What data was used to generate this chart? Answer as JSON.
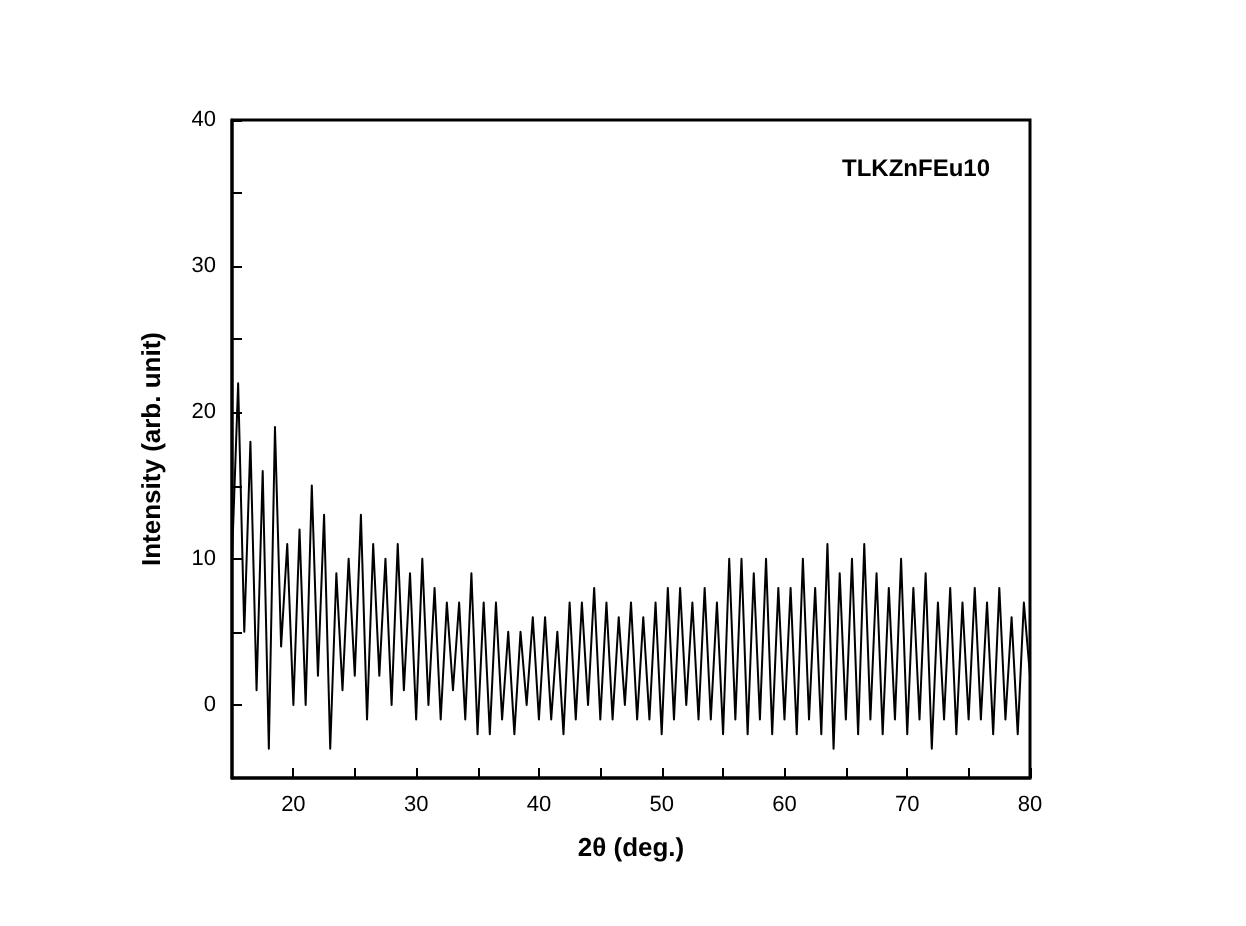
{
  "chart_data": {
    "type": "line",
    "xlabel": "2θ (deg.)",
    "ylabel": "Intensity (arb. unit)",
    "annotations": [
      "TLKZnFEu10"
    ],
    "xlim": [
      15,
      80
    ],
    "ylim": [
      -5,
      40
    ],
    "xticks": [
      20,
      {
        "value": 25,
        "label": null
      },
      30,
      {
        "value": 35,
        "label": null
      },
      40,
      {
        "value": 45,
        "label": null
      },
      50,
      {
        "value": 55,
        "label": null
      },
      60,
      {
        "value": 65,
        "label": null
      },
      70,
      {
        "value": 75,
        "label": null
      },
      80
    ],
    "yticks": [
      0,
      {
        "value": 5,
        "label": null
      },
      10,
      {
        "value": 15,
        "label": null
      },
      20,
      {
        "value": 25,
        "label": null
      },
      30,
      {
        "value": 35,
        "label": null
      },
      40
    ],
    "marker": "none",
    "line_style": "solid",
    "x": [
      15,
      15.5,
      16,
      16.5,
      17,
      17.5,
      18,
      18.5,
      19,
      19.5,
      20,
      20.5,
      21,
      21.5,
      22,
      22.5,
      23,
      23.5,
      24,
      24.5,
      25,
      25.5,
      26,
      26.5,
      27,
      27.5,
      28,
      28.5,
      29,
      29.5,
      30,
      30.5,
      31,
      31.5,
      32,
      32.5,
      33,
      33.5,
      34,
      34.5,
      35,
      35.5,
      36,
      36.5,
      37,
      37.5,
      38,
      38.5,
      39,
      39.5,
      40,
      40.5,
      41,
      41.5,
      42,
      42.5,
      43,
      43.5,
      44,
      44.5,
      45,
      45.5,
      46,
      46.5,
      47,
      47.5,
      48,
      48.5,
      49,
      49.5,
      50,
      50.5,
      51,
      51.5,
      52,
      52.5,
      53,
      53.5,
      54,
      54.5,
      55,
      55.5,
      56,
      56.5,
      57,
      57.5,
      58,
      58.5,
      59,
      59.5,
      60,
      60.5,
      61,
      61.5,
      62,
      62.5,
      63,
      63.5,
      64,
      64.5,
      65,
      65.5,
      66,
      66.5,
      67,
      67.5,
      68,
      68.5,
      69,
      69.5,
      70,
      70.5,
      71,
      71.5,
      72,
      72.5,
      73,
      73.5,
      74,
      74.5,
      75,
      75.5,
      76,
      76.5,
      77,
      77.5,
      78,
      78.5,
      79,
      79.5,
      80
    ],
    "series": [
      {
        "color": "#000000",
        "values": [
          10,
          22,
          5,
          18,
          1,
          16,
          -3,
          19,
          4,
          11,
          0,
          12,
          0,
          15,
          2,
          13,
          -3,
          9,
          1,
          10,
          2,
          13,
          -1,
          11,
          2,
          10,
          0,
          11,
          1,
          9,
          -1,
          10,
          0,
          8,
          -1,
          7,
          1,
          7,
          -1,
          9,
          -2,
          7,
          -2,
          7,
          -1,
          5,
          -2,
          5,
          0,
          6,
          -1,
          6,
          -1,
          5,
          -2,
          7,
          -1,
          7,
          0,
          8,
          -1,
          7,
          -1,
          6,
          0,
          7,
          -1,
          6,
          -1,
          7,
          -2,
          8,
          -1,
          8,
          0,
          7,
          -1,
          8,
          -1,
          7,
          -2,
          10,
          -1,
          10,
          -2,
          9,
          -1,
          10,
          -2,
          8,
          -1,
          8,
          -2,
          10,
          -1,
          8,
          -2,
          11,
          -3,
          9,
          -1,
          10,
          -2,
          11,
          -1,
          9,
          -2,
          8,
          -1,
          10,
          -2,
          8,
          -1,
          9,
          -3,
          7,
          -1,
          8,
          -2,
          7,
          -1,
          8,
          -1,
          7,
          -2,
          8,
          -1,
          6,
          -2,
          7,
          2
        ]
      }
    ]
  }
}
